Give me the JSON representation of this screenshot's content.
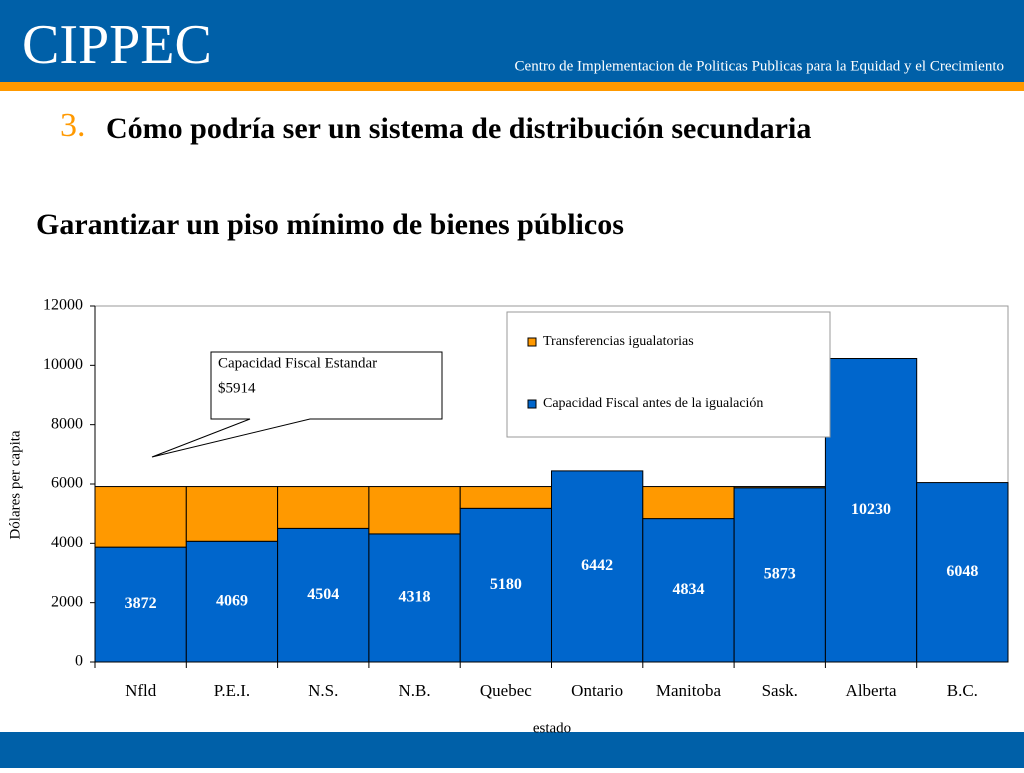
{
  "header": {
    "brand": "CIPPEC",
    "tagline": "Centro de Implementacion de Politicas Publicas para la Equidad y el Crecimiento",
    "number": "3.",
    "title": "Cómo podría ser un sistema de distribución secundaria",
    "subtitle": "Garantizar un piso mínimo de bienes públicos"
  },
  "chart_data": {
    "type": "bar",
    "stacked": true,
    "categories": [
      "Nfld",
      "P.E.I.",
      "N.S.",
      "N.B.",
      "Quebec",
      "Ontario",
      "Manitoba",
      "Sask.",
      "Alberta",
      "B.C."
    ],
    "series": [
      {
        "name": "Capacidad Fiscal antes de la igualación",
        "color": "#0066cc",
        "show_labels": true,
        "values": [
          3872,
          4069,
          4504,
          4318,
          5180,
          6442,
          4834,
          5873,
          10230,
          6048
        ]
      },
      {
        "name": "Transferencias igualatorias",
        "color": "#ff9900",
        "show_labels": false,
        "values": [
          2042,
          1845,
          1410,
          1596,
          734,
          0,
          1080,
          41,
          0,
          0
        ]
      }
    ],
    "ylim": [
      0,
      12000
    ],
    "yticks": [
      0,
      2000,
      4000,
      6000,
      8000,
      10000,
      12000
    ],
    "ylabel": "Dólares per capita",
    "xlabel": "estado",
    "annotation": [
      "Capacidad Fiscal Estandar",
      "$5914"
    ]
  }
}
